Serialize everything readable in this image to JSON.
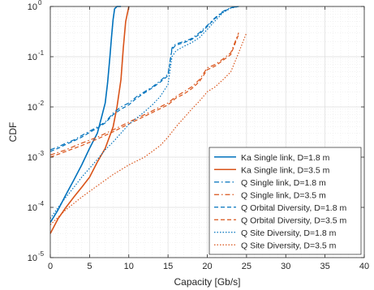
{
  "chart_data": {
    "type": "line",
    "xlabel": "Capacity [Gb/s]",
    "ylabel": "CDF",
    "xlim": [
      0,
      40
    ],
    "ylim": [
      1e-05,
      1
    ],
    "yscale": "log",
    "grid": true,
    "minor_grid": true,
    "legend_position": "bottom-right",
    "x_ticks": [
      0,
      5,
      10,
      15,
      20,
      25,
      30,
      35,
      40
    ],
    "x_tick_labels": [
      "0",
      "5",
      "10",
      "15",
      "20",
      "25",
      "30",
      "35",
      "40"
    ],
    "y_ticks": [
      1e-05,
      0.0001,
      0.001,
      0.01,
      0.1,
      1
    ],
    "y_tick_labels": [
      {
        "base": "10",
        "exp": "-5"
      },
      {
        "base": "10",
        "exp": "-4"
      },
      {
        "base": "10",
        "exp": "-3"
      },
      {
        "base": "10",
        "exp": "-2"
      },
      {
        "base": "10",
        "exp": "-1"
      },
      {
        "base": "10",
        "exp": "0"
      }
    ],
    "series": [
      {
        "name": "Ka Single link, D=1.8 m",
        "color": "#0072BD",
        "dash": "solid",
        "width": 1.6,
        "x": [
          0,
          1,
          2,
          3,
          4,
          5,
          6,
          6.5,
          7,
          7.3,
          7.6,
          7.8,
          8.0,
          8.2,
          8.5,
          9.0
        ],
        "y": [
          5e-05,
          9e-05,
          0.00018,
          0.00035,
          0.0007,
          0.0015,
          0.003,
          0.006,
          0.012,
          0.03,
          0.1,
          0.25,
          0.55,
          0.9,
          1,
          1
        ]
      },
      {
        "name": "Ka Single link, D=3.5 m",
        "color": "#D95319",
        "dash": "solid",
        "width": 1.6,
        "x": [
          0,
          1,
          2,
          3,
          4,
          5,
          6,
          7,
          8,
          8.5,
          9.0,
          9.3,
          9.6,
          10.0
        ],
        "y": [
          3e-05,
          6e-05,
          0.0001,
          0.00016,
          0.00025,
          0.0004,
          0.0008,
          0.0015,
          0.004,
          0.01,
          0.035,
          0.15,
          0.5,
          1
        ]
      },
      {
        "name": "Q Single link, D=1.8 m",
        "color": "#0072BD",
        "dash": "6,3,1.5,3",
        "width": 1.2,
        "x": [
          0,
          1,
          2,
          3,
          4,
          5,
          6,
          7,
          8,
          9,
          10,
          11,
          12,
          13,
          14,
          15,
          15.5,
          16,
          17,
          18,
          19,
          20,
          21,
          22,
          23,
          24
        ],
        "y": [
          0.0014,
          0.0016,
          0.0019,
          0.0022,
          0.0027,
          0.0033,
          0.004,
          0.005,
          0.0075,
          0.01,
          0.012,
          0.016,
          0.02,
          0.025,
          0.033,
          0.045,
          0.15,
          0.18,
          0.2,
          0.23,
          0.3,
          0.42,
          0.6,
          0.8,
          0.95,
          1
        ]
      },
      {
        "name": "Q Single link, D=3.5 m",
        "color": "#D95319",
        "dash": "6,3,1.5,3",
        "width": 1.2,
        "x": [
          0,
          2,
          4,
          6,
          8,
          10,
          12,
          14,
          15,
          16,
          17,
          18,
          19,
          20,
          21,
          22,
          23,
          24
        ],
        "y": [
          0.0011,
          0.0014,
          0.0019,
          0.0025,
          0.0035,
          0.005,
          0.007,
          0.01,
          0.012,
          0.016,
          0.02,
          0.025,
          0.035,
          0.06,
          0.07,
          0.09,
          0.12,
          0.3
        ]
      },
      {
        "name": "Q Orbital Diversity, D=1.8 m",
        "color": "#0072BD",
        "dash": "5,3",
        "width": 1.2,
        "x": [
          0,
          1,
          2,
          3,
          4,
          5,
          6,
          7,
          8,
          9,
          10,
          11,
          12,
          13,
          14,
          15,
          15.5,
          16,
          17,
          18,
          19,
          20,
          21,
          22,
          23,
          24
        ],
        "y": [
          0.0013,
          0.0015,
          0.0018,
          0.0021,
          0.0025,
          0.0031,
          0.0038,
          0.0048,
          0.007,
          0.009,
          0.011,
          0.015,
          0.019,
          0.024,
          0.031,
          0.042,
          0.14,
          0.17,
          0.19,
          0.22,
          0.28,
          0.4,
          0.58,
          0.78,
          0.94,
          1
        ]
      },
      {
        "name": "Q Orbital Diversity, D=3.5 m",
        "color": "#D95319",
        "dash": "5,3",
        "width": 1.2,
        "x": [
          0,
          2,
          4,
          6,
          8,
          10,
          12,
          14,
          15,
          16,
          17,
          18,
          19,
          20,
          21,
          22,
          23,
          24
        ],
        "y": [
          0.001,
          0.0013,
          0.0017,
          0.0023,
          0.0032,
          0.0046,
          0.0065,
          0.0092,
          0.011,
          0.015,
          0.018,
          0.023,
          0.032,
          0.055,
          0.065,
          0.085,
          0.11,
          0.28
        ]
      },
      {
        "name": "Q Site Diversity, D=1.8 m",
        "color": "#0072BD",
        "dash": "1.5,2",
        "width": 1.2,
        "x": [
          0,
          1,
          2,
          3,
          4,
          5,
          6,
          7,
          8,
          9,
          10,
          11,
          12,
          13,
          14,
          15,
          15.5,
          16,
          17,
          18,
          19,
          20,
          21,
          22,
          23,
          24
        ],
        "y": [
          6e-05,
          0.0001,
          0.00016,
          0.00025,
          0.0004,
          0.0006,
          0.0009,
          0.0014,
          0.002,
          0.003,
          0.0045,
          0.006,
          0.008,
          0.011,
          0.016,
          0.028,
          0.1,
          0.13,
          0.16,
          0.19,
          0.24,
          0.35,
          0.52,
          0.75,
          0.93,
          1
        ]
      },
      {
        "name": "Q Site Diversity, D=3.5 m",
        "color": "#D95319",
        "dash": "1.5,2",
        "width": 1.2,
        "x": [
          0,
          2,
          4,
          6,
          8,
          10,
          12,
          14,
          15,
          16,
          17,
          18,
          19,
          20,
          21,
          22,
          23,
          24,
          25
        ],
        "y": [
          4.5e-05,
          9e-05,
          0.00016,
          0.00027,
          0.00045,
          0.0007,
          0.001,
          0.0017,
          0.0025,
          0.004,
          0.006,
          0.009,
          0.013,
          0.02,
          0.025,
          0.035,
          0.05,
          0.12,
          0.3
        ]
      }
    ]
  }
}
